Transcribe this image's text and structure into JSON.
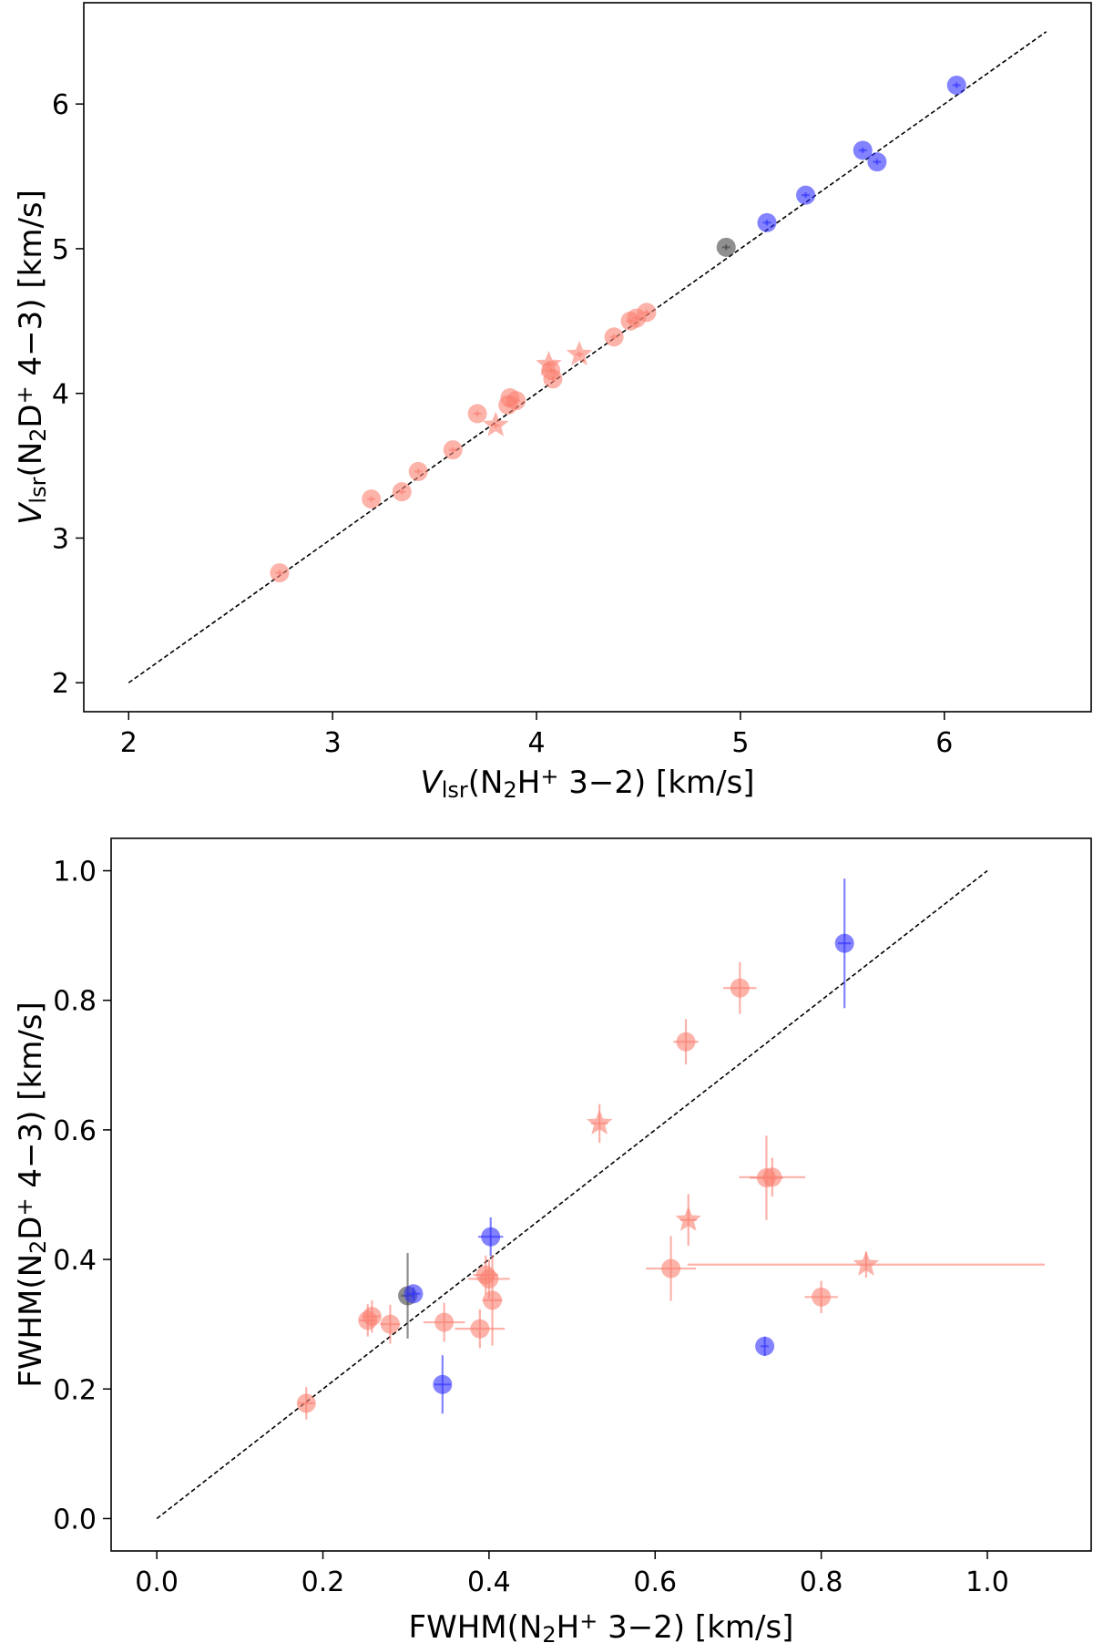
{
  "colors": {
    "red": "#fa8072",
    "blue": "#3030ff",
    "black": "#444444",
    "line": "#000000"
  },
  "chart_data": [
    {
      "type": "scatter",
      "title": "",
      "xlabel": {
        "italic": "V",
        "sub": "lsr",
        "pre": "(N",
        "sub2": "2",
        "mid": "H",
        "sup": "+",
        "post": " 3−2) [km/s]"
      },
      "ylabel": {
        "italic": "V",
        "sub": "lsr",
        "pre": "(N",
        "sub2": "2",
        "mid": "D",
        "sup": "+",
        "post": " 4−3) [km/s]"
      },
      "xlim": [
        1.78,
        6.72
      ],
      "ylim": [
        1.8,
        6.7
      ],
      "xticks": [
        2,
        3,
        4,
        5,
        6
      ],
      "yticks": [
        2,
        3,
        4,
        5,
        6
      ],
      "xtick_labels": [
        "2",
        "3",
        "4",
        "5",
        "6"
      ],
      "ytick_labels": [
        "2",
        "3",
        "4",
        "5",
        "6"
      ],
      "one_to_one": [
        2.0,
        6.5
      ],
      "points": [
        {
          "x": 2.74,
          "y": 2.76,
          "c": "red",
          "m": "o"
        },
        {
          "x": 3.19,
          "y": 3.27,
          "c": "red",
          "m": "o"
        },
        {
          "x": 3.34,
          "y": 3.32,
          "c": "red",
          "m": "o"
        },
        {
          "x": 3.42,
          "y": 3.46,
          "c": "red",
          "m": "o"
        },
        {
          "x": 3.59,
          "y": 3.61,
          "c": "red",
          "m": "o"
        },
        {
          "x": 3.71,
          "y": 3.86,
          "c": "red",
          "m": "o"
        },
        {
          "x": 3.8,
          "y": 3.78,
          "c": "red",
          "m": "*"
        },
        {
          "x": 3.86,
          "y": 3.92,
          "c": "red",
          "m": "o"
        },
        {
          "x": 3.87,
          "y": 3.97,
          "c": "red",
          "m": "o"
        },
        {
          "x": 3.9,
          "y": 3.95,
          "c": "red",
          "m": "o"
        },
        {
          "x": 4.06,
          "y": 4.2,
          "c": "red",
          "m": "*"
        },
        {
          "x": 4.07,
          "y": 4.16,
          "c": "red",
          "m": "o"
        },
        {
          "x": 4.08,
          "y": 4.1,
          "c": "red",
          "m": "o"
        },
        {
          "x": 4.21,
          "y": 4.27,
          "c": "red",
          "m": "*"
        },
        {
          "x": 4.38,
          "y": 4.39,
          "c": "red",
          "m": "o"
        },
        {
          "x": 4.46,
          "y": 4.5,
          "c": "red",
          "m": "o"
        },
        {
          "x": 4.49,
          "y": 4.52,
          "c": "red",
          "m": "o"
        },
        {
          "x": 4.54,
          "y": 4.56,
          "c": "red",
          "m": "o"
        },
        {
          "x": 4.93,
          "y": 5.01,
          "c": "black",
          "m": "o"
        },
        {
          "x": 5.13,
          "y": 5.18,
          "c": "blue",
          "m": "o"
        },
        {
          "x": 5.32,
          "y": 5.37,
          "c": "blue",
          "m": "o"
        },
        {
          "x": 5.6,
          "y": 5.68,
          "c": "blue",
          "m": "o"
        },
        {
          "x": 5.67,
          "y": 5.6,
          "c": "blue",
          "m": "o"
        },
        {
          "x": 6.06,
          "y": 6.13,
          "c": "blue",
          "m": "o"
        }
      ]
    },
    {
      "type": "scatter",
      "title": "",
      "xlabel": {
        "pre": "FWHM(N",
        "sub2": "2",
        "mid": "H",
        "sup": "+",
        "post": " 3−2) [km/s]"
      },
      "ylabel": {
        "pre": "FWHM(N",
        "sub2": "2",
        "mid": "D",
        "sup": "+",
        "post": " 4−3) [km/s]"
      },
      "xlim": [
        -0.055,
        1.125
      ],
      "ylim": [
        -0.05,
        1.05
      ],
      "xticks": [
        0.0,
        0.2,
        0.4,
        0.6,
        0.8,
        1.0
      ],
      "yticks": [
        0.0,
        0.2,
        0.4,
        0.6,
        0.8,
        1.0
      ],
      "xtick_labels": [
        "0.0",
        "0.2",
        "0.4",
        "0.6",
        "0.8",
        "1.0"
      ],
      "ytick_labels": [
        "0.0",
        "0.2",
        "0.4",
        "0.6",
        "0.8",
        "1.0"
      ],
      "one_to_one": [
        0.0,
        1.0
      ],
      "points": [
        {
          "x": 0.18,
          "y": 0.178,
          "xe": 0.01,
          "ye": 0.025,
          "c": "red",
          "m": "o"
        },
        {
          "x": 0.254,
          "y": 0.306,
          "xe": 0.01,
          "ye": 0.025,
          "c": "red",
          "m": "o"
        },
        {
          "x": 0.259,
          "y": 0.312,
          "xe": 0.01,
          "ye": 0.025,
          "c": "red",
          "m": "o"
        },
        {
          "x": 0.281,
          "y": 0.3,
          "xe": 0.012,
          "ye": 0.03,
          "c": "red",
          "m": "o"
        },
        {
          "x": 0.346,
          "y": 0.303,
          "xe": 0.025,
          "ye": 0.03,
          "c": "red",
          "m": "o"
        },
        {
          "x": 0.389,
          "y": 0.293,
          "xe": 0.03,
          "ye": 0.03,
          "c": "red",
          "m": "o"
        },
        {
          "x": 0.396,
          "y": 0.376,
          "xe": 0.015,
          "ye": 0.03,
          "c": "red",
          "m": "o"
        },
        {
          "x": 0.4,
          "y": 0.37,
          "xe": 0.025,
          "ye": 0.03,
          "c": "red",
          "m": "o"
        },
        {
          "x": 0.404,
          "y": 0.337,
          "xe": 0.012,
          "ye": 0.07,
          "c": "red",
          "m": "o"
        },
        {
          "x": 0.533,
          "y": 0.61,
          "xe": 0.01,
          "ye": 0.03,
          "c": "red",
          "m": "*"
        },
        {
          "x": 0.619,
          "y": 0.386,
          "xe": 0.03,
          "ye": 0.05,
          "c": "red",
          "m": "o"
        },
        {
          "x": 0.637,
          "y": 0.736,
          "xe": 0.015,
          "ye": 0.035,
          "c": "red",
          "m": "o"
        },
        {
          "x": 0.64,
          "y": 0.461,
          "xe": 0.01,
          "ye": 0.04,
          "c": "red",
          "m": "*"
        },
        {
          "x": 0.702,
          "y": 0.819,
          "xe": 0.02,
          "ye": 0.04,
          "c": "red",
          "m": "o"
        },
        {
          "x": 0.734,
          "y": 0.526,
          "xe": 0.02,
          "ye": 0.065,
          "c": "red",
          "m": "o"
        },
        {
          "x": 0.741,
          "y": 0.527,
          "xe": 0.04,
          "ye": 0.03,
          "c": "red",
          "m": "o"
        },
        {
          "x": 0.8,
          "y": 0.342,
          "xe": 0.02,
          "ye": 0.025,
          "c": "red",
          "m": "o"
        },
        {
          "x": 0.854,
          "y": 0.392,
          "xe": 0.215,
          "ye": 0.02,
          "c": "red",
          "m": "*"
        },
        {
          "x": 0.302,
          "y": 0.344,
          "xe": 0.008,
          "ye": 0.066,
          "c": "black",
          "m": "o"
        },
        {
          "x": 0.309,
          "y": 0.347,
          "xe": 0.008,
          "ye": 0.01,
          "c": "blue",
          "m": "o"
        },
        {
          "x": 0.344,
          "y": 0.207,
          "xe": 0.01,
          "ye": 0.045,
          "c": "blue",
          "m": "o"
        },
        {
          "x": 0.402,
          "y": 0.435,
          "xe": 0.015,
          "ye": 0.03,
          "c": "blue",
          "m": "o"
        },
        {
          "x": 0.732,
          "y": 0.266,
          "xe": 0.005,
          "ye": 0.015,
          "c": "blue",
          "m": "o"
        },
        {
          "x": 0.828,
          "y": 0.888,
          "xe": 0.008,
          "ye": 0.1,
          "c": "blue",
          "m": "o"
        }
      ]
    }
  ]
}
